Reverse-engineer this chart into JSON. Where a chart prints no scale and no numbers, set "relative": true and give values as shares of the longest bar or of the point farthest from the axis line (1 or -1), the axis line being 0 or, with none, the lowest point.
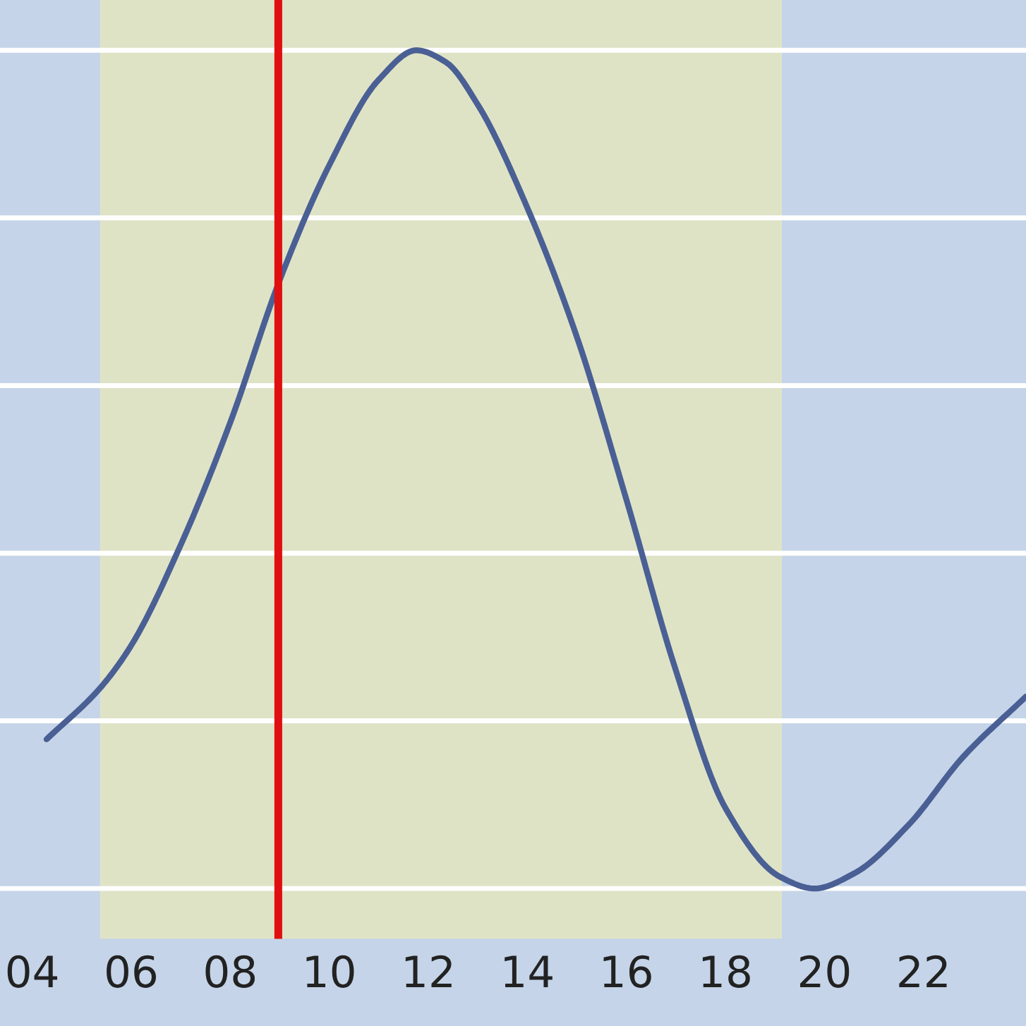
{
  "chart_data": {
    "type": "line",
    "relative": true,
    "color": "#4a5f94",
    "x": [
      4.29,
      5.37,
      6,
      7,
      8,
      9,
      10,
      11,
      11.76,
      12.35,
      13,
      14,
      15,
      16,
      17,
      18,
      19.1,
      19.8,
      20.6,
      21.7,
      22.8,
      24.07
    ],
    "values": [
      0.178,
      0.239,
      0.29,
      0.41,
      0.556,
      0.726,
      0.863,
      0.965,
      1,
      0.986,
      0.935,
      0.812,
      0.658,
      0.464,
      0.26,
      0.096,
      0.014,
      0,
      0.018,
      0.076,
      0.157,
      0.229
    ],
    "xlim": [
      3.35,
      24.07
    ],
    "xticks": [
      {
        "value": 4,
        "label": "04"
      },
      {
        "value": 6,
        "label": "06"
      },
      {
        "value": 8,
        "label": "08"
      },
      {
        "value": 10,
        "label": "10"
      },
      {
        "value": 12,
        "label": "12"
      },
      {
        "value": 14,
        "label": "14"
      },
      {
        "value": 16,
        "label": "16"
      },
      {
        "value": 18,
        "label": "18"
      },
      {
        "value": 20,
        "label": "20"
      },
      {
        "value": 22,
        "label": "22"
      }
    ],
    "bands": [
      {
        "axis": "x",
        "from": 5.37,
        "to": 19.14,
        "color": "#dfe3c6"
      }
    ],
    "ref_lines": [
      {
        "axis": "x",
        "value": 8.97,
        "color": "#e01010",
        "line_style": "solid"
      }
    ],
    "grid": "y",
    "tick_labels": "x",
    "line_style": "solid",
    "marker": "none"
  }
}
